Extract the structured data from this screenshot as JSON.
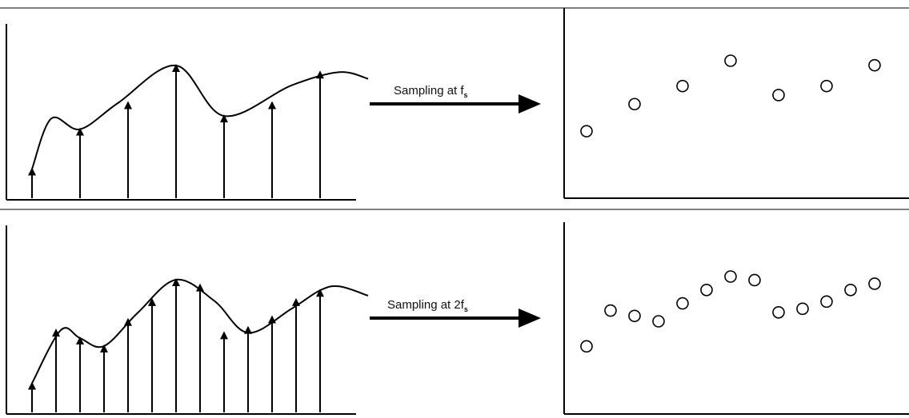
{
  "rows": [
    {
      "label_main": "Sampling at f",
      "label_sub": "s",
      "curve": [
        [
          0,
          0.22
        ],
        [
          4,
          0.6
        ],
        [
          10,
          0.52
        ],
        [
          18,
          0.72
        ],
        [
          30,
          1.0
        ],
        [
          40,
          0.62
        ],
        [
          54,
          0.85
        ],
        [
          64,
          0.95
        ],
        [
          70,
          0.9
        ]
      ],
      "samples": [
        [
          0,
          0.22
        ],
        [
          10,
          0.52
        ],
        [
          20,
          0.72
        ],
        [
          30,
          1.0
        ],
        [
          40,
          0.62
        ],
        [
          50,
          0.72
        ],
        [
          60,
          0.95
        ]
      ],
      "points": [
        [
          0,
          0.22
        ],
        [
          10,
          0.52
        ],
        [
          20,
          0.72
        ],
        [
          30,
          1.0
        ],
        [
          40,
          0.62
        ],
        [
          50,
          0.72
        ],
        [
          60,
          0.95
        ]
      ]
    },
    {
      "label_main": "Sampling at 2f",
      "label_sub": "s",
      "curve": [
        [
          0,
          0.22
        ],
        [
          6,
          0.62
        ],
        [
          10,
          0.56
        ],
        [
          15,
          0.5
        ],
        [
          22,
          0.75
        ],
        [
          30,
          1.0
        ],
        [
          38,
          0.84
        ],
        [
          45,
          0.6
        ],
        [
          54,
          0.78
        ],
        [
          60,
          0.92
        ],
        [
          64,
          0.95
        ],
        [
          70,
          0.88
        ]
      ],
      "samples": [
        [
          0,
          0.22
        ],
        [
          5,
          0.62
        ],
        [
          10,
          0.56
        ],
        [
          15,
          0.5
        ],
        [
          20,
          0.7
        ],
        [
          25,
          0.85
        ],
        [
          30,
          1.0
        ],
        [
          35,
          0.96
        ],
        [
          40,
          0.6
        ],
        [
          45,
          0.64
        ],
        [
          50,
          0.72
        ],
        [
          55,
          0.85
        ],
        [
          60,
          0.92
        ]
      ],
      "points": [
        [
          0,
          0.22
        ],
        [
          5,
          0.62
        ],
        [
          10,
          0.56
        ],
        [
          15,
          0.5
        ],
        [
          20,
          0.7
        ],
        [
          25,
          0.85
        ],
        [
          30,
          1.0
        ],
        [
          35,
          0.96
        ],
        [
          40,
          0.6
        ],
        [
          45,
          0.64
        ],
        [
          50,
          0.72
        ],
        [
          55,
          0.85
        ],
        [
          60,
          0.92
        ]
      ]
    }
  ]
}
